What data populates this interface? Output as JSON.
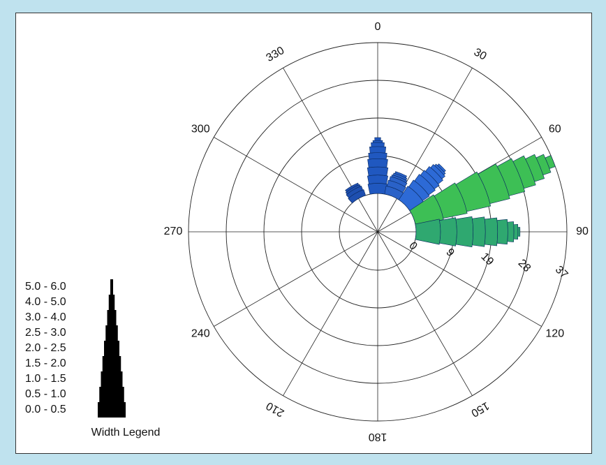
{
  "chart_data": {
    "type": "rose",
    "legend_title": "Width Legend",
    "directions": [
      330,
      0,
      22,
      45,
      68,
      90
    ],
    "colors": [
      "#1e4fb0",
      "#2058c0",
      "#2a62c8",
      "#2d6ad6",
      "#3dbf55",
      "#2fa870"
    ],
    "angle_ticks": [
      0,
      30,
      60,
      90,
      120,
      150,
      180,
      210,
      240,
      270,
      300,
      330
    ],
    "rlim": [
      0,
      37
    ],
    "rticks": [
      0,
      {
        "value": 9.25,
        "label": "9"
      },
      {
        "value": 18.5,
        "label": "19"
      },
      {
        "value": 27.75,
        "label": "28"
      },
      37
    ],
    "series": [
      {
        "name": "0.0 - 0.5",
        "values": [
          1.5,
          2.5,
          2,
          4,
          7,
          6
        ]
      },
      {
        "name": "0.5 - 1.0",
        "values": [
          1,
          2,
          1.5,
          2,
          6,
          4
        ]
      },
      {
        "name": "1.0 - 1.5",
        "values": [
          0.5,
          2,
          1,
          2,
          6,
          4
        ]
      },
      {
        "name": "1.5 - 2.0",
        "values": [
          0.5,
          2,
          0.5,
          1.5,
          5,
          3
        ]
      },
      {
        "name": "2.0 - 2.5",
        "values": [
          0,
          1.5,
          0.5,
          1.5,
          4,
          3
        ]
      },
      {
        "name": "2.5 - 3.0",
        "values": [
          0,
          1.5,
          0.5,
          1,
          3,
          2.5
        ]
      },
      {
        "name": "3.0 - 4.0",
        "values": [
          0,
          1,
          0,
          0.5,
          2.5,
          1.5
        ]
      },
      {
        "name": "4.0 - 5.0",
        "values": [
          0,
          0.5,
          0,
          0.5,
          2,
          1
        ]
      },
      {
        "name": "5.0 - 6.0",
        "values": [
          0,
          0.7,
          0,
          0,
          1.5,
          0.5
        ]
      }
    ]
  }
}
